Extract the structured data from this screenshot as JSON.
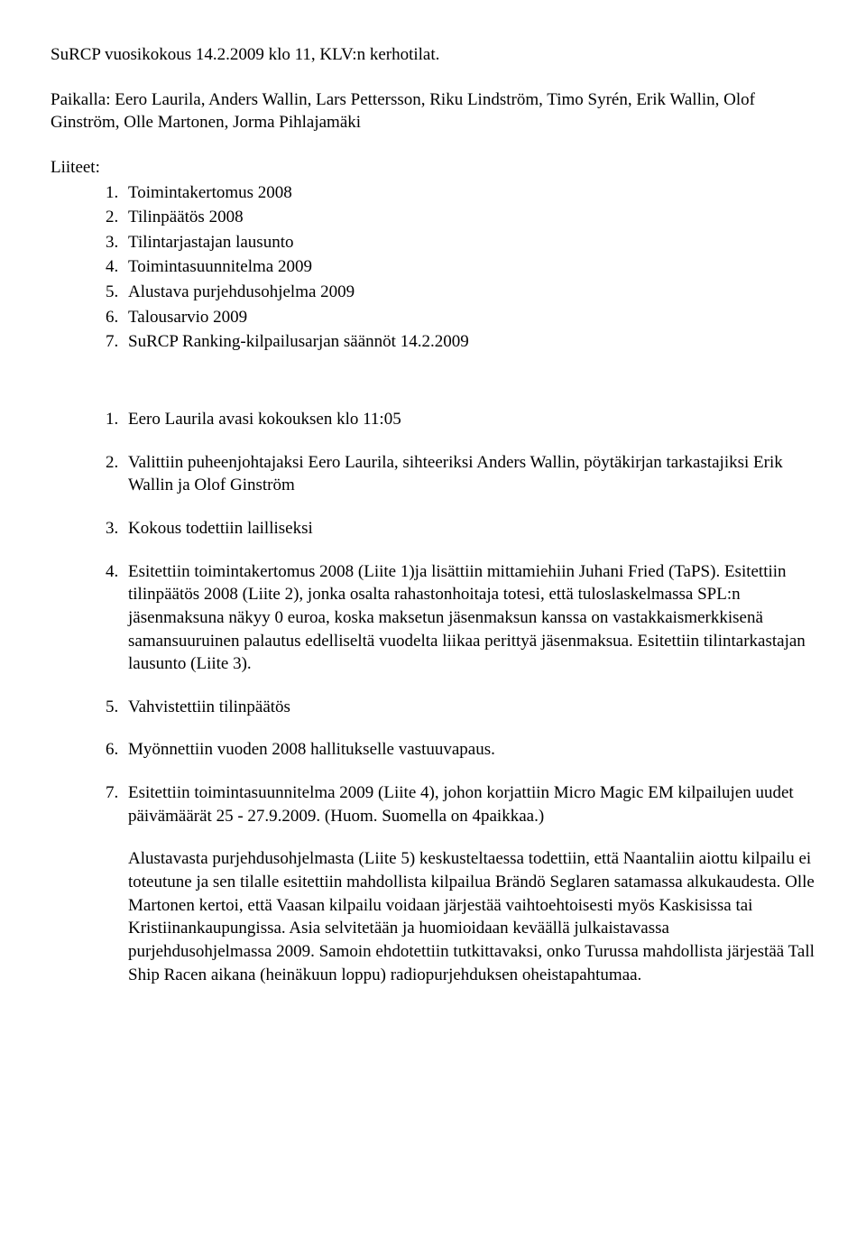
{
  "title": "SuRCP vuosikokous 14.2.2009 klo 11, KLV:n kerhotilat.",
  "intro": "Paikalla: Eero Laurila, Anders Wallin, Lars Pettersson, Riku Lindström, Timo Syrén, Erik Wallin, Olof Ginström, Olle Martonen, Jorma Pihlajamäki",
  "attachments_heading": "Liiteet:",
  "attachments": [
    "Toimintakertomus 2008",
    "Tilinpäätös 2008",
    "Tilintarjastajan lausunto",
    "Toimintasuunnitelma 2009",
    "Alustava purjehdusohjelma 2009",
    "Talousarvio 2009",
    "SuRCP Ranking-kilpailusarjan säännöt 14.2.2009"
  ],
  "items": [
    "Eero Laurila avasi kokouksen klo 11:05",
    "Valittiin puheenjohtajaksi Eero Laurila, sihteeriksi Anders Wallin, pöytäkirjan tarkastajiksi Erik Wallin ja Olof Ginström",
    "Kokous todettiin lailliseksi",
    "Esitettiin toimintakertomus 2008 (Liite 1)ja lisättiin mittamiehiin Juhani Fried (TaPS). Esitettiin tilinpäätös 2008 (Liite 2), jonka osalta rahastonhoitaja totesi, että tuloslaskelmassa SPL:n jäsenmaksuna näkyy 0 euroa, koska maksetun jäsenmaksun kanssa on vastakkaismerkkisenä samansuuruinen palautus edelliseltä vuodelta liikaa perittyä jäsenmaksua. Esitettiin tilintarkastajan lausunto (Liite 3).",
    "Vahvistettiin tilinpäätös",
    "Myönnettiin vuoden 2008 hallitukselle vastuuvapaus.",
    "Esitettiin toimintasuunnitelma 2009 (Liite 4), johon korjattiin Micro Magic EM kilpailujen uudet päivämäärät 25 - 27.9.2009. (Huom. Suomella on 4paikkaa.)"
  ],
  "followup": "Alustavasta purjehdusohjelmasta (Liite 5) keskusteltaessa todettiin, että Naantaliin aiottu kilpailu ei toteutune ja sen tilalle esitettiin mahdollista kilpailua Brändö Seglaren satamassa alkukaudesta. Olle Martonen kertoi, että Vaasan kilpailu voidaan järjestää vaihtoehtoisesti myös Kaskisissa tai Kristiinankaupungissa. Asia selvitetään ja huomioidaan keväällä julkaistavassa purjehdusohjelmassa 2009. Samoin ehdotettiin tutkittavaksi, onko Turussa mahdollista järjestää Tall Ship Racen aikana (heinäkuun loppu) radiopurjehduksen oheistapahtumaa."
}
